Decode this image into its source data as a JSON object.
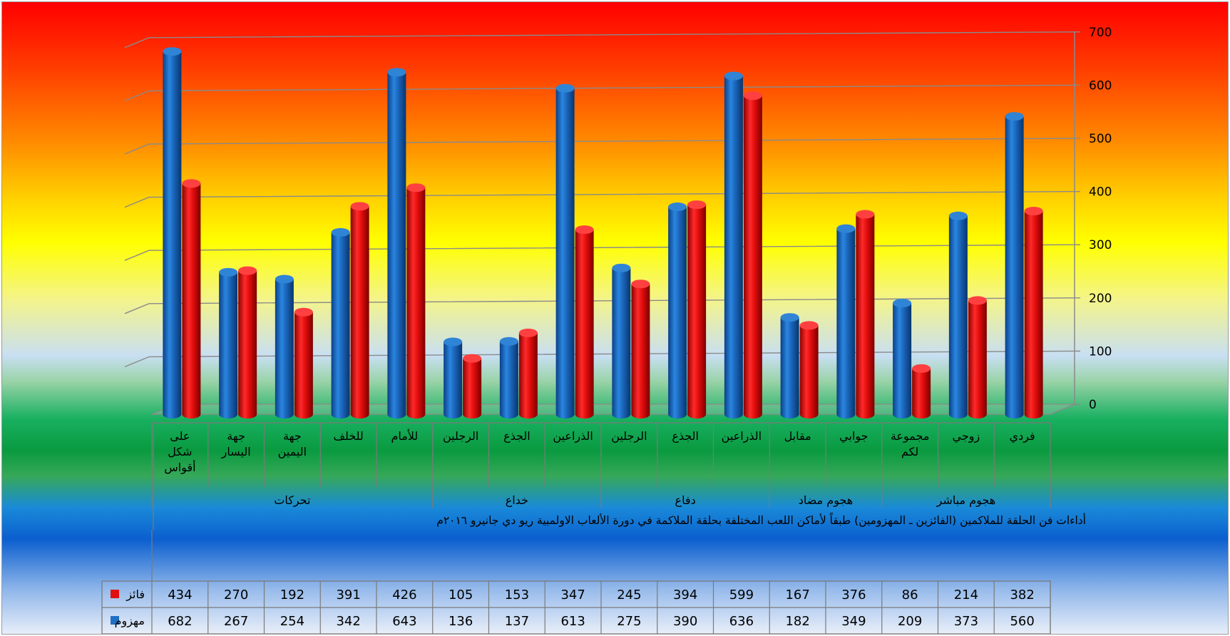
{
  "chart_data": {
    "type": "bar",
    "title": "",
    "caption": "أداءات فن الحلقة للملاكمين (الفائزين ـ المهزومين) طبقاً لأماكن اللعب المختلفة بحلقة الملاكمة في دورة الألعاب الاولمبية ريو دي جانيرو ٢٠١٦م",
    "ylim": [
      0,
      700
    ],
    "yticks": [
      0,
      100,
      200,
      300,
      400,
      500,
      600,
      700
    ],
    "grid": true,
    "legend_placement": "table-left",
    "categories": [
      "على شكل أقواس",
      "جهة اليسار",
      "جهة اليمين",
      "للخلف",
      "للأمام",
      "الرجلين",
      "الجذع",
      "الذراعين",
      "الرجلين",
      "الجذع",
      "الذراعين",
      "مقابل",
      "جوابي",
      "مجموعة لكم",
      "زوجي",
      "فردي"
    ],
    "category_lines": [
      [
        "على",
        "شكل",
        "أقواس"
      ],
      [
        "جهة",
        "اليسار"
      ],
      [
        "جهة",
        "اليمين"
      ],
      [
        "للخلف"
      ],
      [
        "للأمام"
      ],
      [
        "الرجلين"
      ],
      [
        "الجذع"
      ],
      [
        "الذراعين"
      ],
      [
        "الرجلين"
      ],
      [
        "الجذع"
      ],
      [
        "الذراعين"
      ],
      [
        "مقابل"
      ],
      [
        "جوابي"
      ],
      [
        "مجموعة",
        "لكم"
      ],
      [
        "زوجي"
      ],
      [
        "فردي"
      ]
    ],
    "groups": [
      {
        "name": "تحركات",
        "span": 5
      },
      {
        "name": "خداع",
        "span": 3
      },
      {
        "name": "دفاع",
        "span": 3
      },
      {
        "name": "هجوم مضاد",
        "span": 2
      },
      {
        "name": "هجوم مباشر",
        "span": 3
      }
    ],
    "series": [
      {
        "name": "مهزوم",
        "color": "#1f6fc2",
        "values": [
          682,
          267,
          254,
          342,
          643,
          136,
          137,
          613,
          275,
          390,
          636,
          182,
          349,
          209,
          373,
          560
        ]
      },
      {
        "name": "فائز",
        "color": "#e01010",
        "values": [
          434,
          270,
          192,
          391,
          426,
          105,
          153,
          347,
          245,
          394,
          599,
          167,
          376,
          86,
          214,
          382
        ]
      }
    ]
  }
}
